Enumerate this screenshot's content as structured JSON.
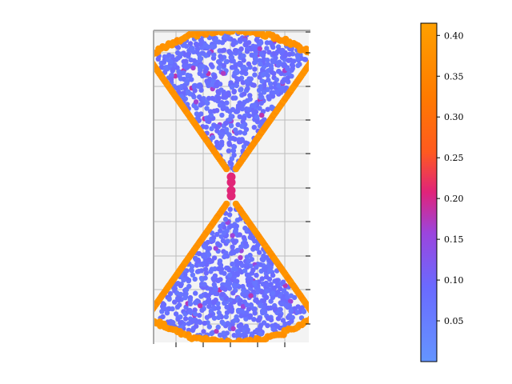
{
  "chart_data": {
    "type": "scatter",
    "title": "",
    "xlabel": "",
    "ylabel": "",
    "grid": true,
    "plot_background": "#f3f3f3",
    "grid_color": "#bdbdbd",
    "x_ticks_count": 5,
    "y_ticks_count": 9,
    "xlim": [
      -0.57,
      0.57
    ],
    "ylim": [
      -1.15,
      1.15
    ],
    "colorbar": {
      "min": 0.0,
      "max": 0.415,
      "ticks": [
        0.05,
        0.1,
        0.15,
        0.2,
        0.25,
        0.3,
        0.35,
        0.4
      ],
      "tick_labels": [
        "0.05",
        "0.10",
        "0.15",
        "0.20",
        "0.25",
        "0.30",
        "0.35",
        "0.40"
      ],
      "colormap": [
        "#6495ff",
        "#6a6aff",
        "#9b45dd",
        "#e0237a",
        "#ff5a1f",
        "#ff7a00",
        "#ffa000"
      ]
    },
    "shape": {
      "description_values": "hourglass of two circular sectors meeting at origin",
      "apex_gap": 0.08,
      "sector_radius": 1.07,
      "half_angle_deg": 35,
      "interior_value": 0.06,
      "boundary_value": 0.39,
      "waist_value": 0.21
    }
  }
}
